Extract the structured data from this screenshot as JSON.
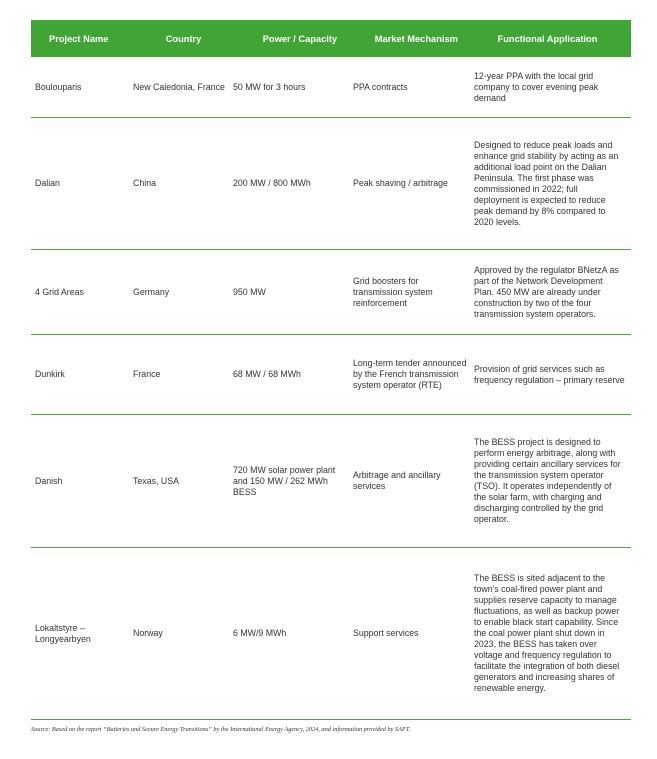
{
  "table": {
    "headers": [
      "Project Name",
      "Country",
      "Power / Capacity",
      "Market Mechanism",
      "Functional Application"
    ],
    "header_color": "#41a535",
    "rows": [
      {
        "project": "Boulouparis",
        "country": "New Caledonia, France",
        "power": "50 MW for 3 hours",
        "market": "PPA contracts",
        "application": "12-year PPA with the local grid company to cover evening peak demand"
      },
      {
        "project": "Dalian",
        "country": "China",
        "power": "200 MW / 800 MWh",
        "market": "Peak shaving / arbitrage",
        "application": "Designed to reduce peak loads and enhance grid stability by acting as an additional load point on the Dalian Peninsula. The first phase was commissioned in 2022; full deployment is expected to reduce peak demand by 8% compared to 2020 levels."
      },
      {
        "project": "4 Grid Areas",
        "country": "Germany",
        "power": "950 MW",
        "market": "Grid boosters for transmission system reinforcement",
        "application": "Approved by the regulator BNetzA as part of the Network Development Plan. 450 MW are already under construction by two of the four transmission system operators."
      },
      {
        "project": "Dunkirk",
        "country": "France",
        "power": "68 MW / 68 MWh",
        "market": "Long-term tender announced by the French transmission system operator (RTE)",
        "application": "Provision of grid services such as frequency regulation – primary reserve"
      },
      {
        "project": "Danish",
        "country": "Texas, USA",
        "power": "720 MW solar power plant and 150 MW / 262 MWh BESS",
        "market": "Arbitrage and ancillary services",
        "application": "The BESS project is designed to perform energy arbitrage, along with providing certain ancillary services for the transmission system operator (TSO). It operates independently of the solar farm, with charging and discharging controlled by the grid operator."
      },
      {
        "project": "Lokaltstyre – Longyearbyen",
        "country": "Norway",
        "power": "6 MW/9 MWh",
        "market": "Support services",
        "application": "The BESS is sited adjacent to the town's coal-fired power plant and supplies reserve capacity to manage fluctuations, as well as backup power to enable black start capability. Since the coal power plant shut down in 2023, the BESS has taken over voltage and frequency regulation to facilitate the integration of both diesel generators and increasing shares of renewable energy."
      }
    ]
  },
  "source": "Source: Based on the report “Batteries and Secure Energy Transitions” by the International Energy Agency, 2024, and information provided by SAFT."
}
